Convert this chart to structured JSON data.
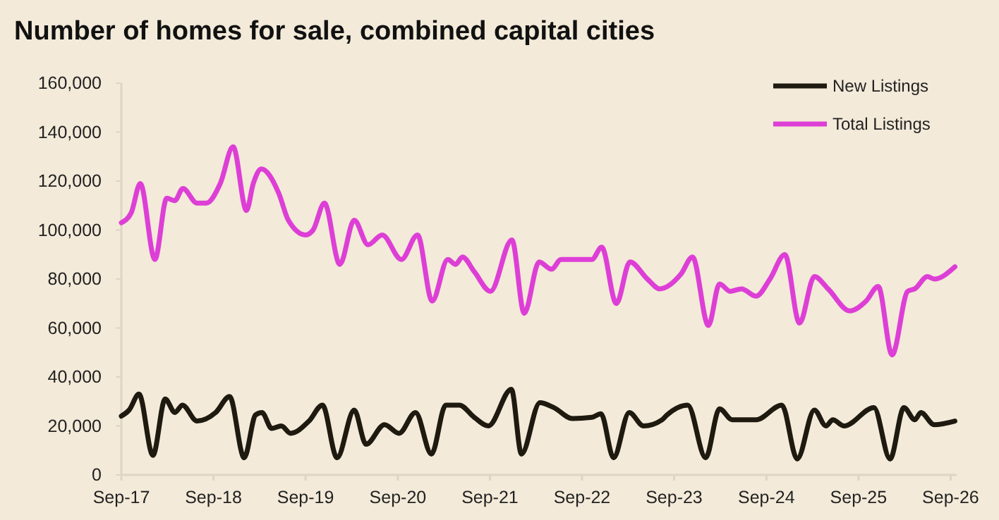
{
  "chart_data": {
    "type": "line",
    "title": "Number of homes for sale, combined capital cities",
    "legend": "top right",
    "line_style": "solid",
    "marker": "none",
    "xlim": [
      "2017-09-01",
      "2026-09-25"
    ],
    "xticks": [
      {
        "value": "2017-09-01",
        "label": "Sep-17"
      },
      {
        "value": "2018-09-01",
        "label": "Sep-18"
      },
      {
        "value": "2019-09-01",
        "label": "Sep-19"
      },
      {
        "value": "2020-09-01",
        "label": "Sep-20"
      },
      {
        "value": "2021-09-01",
        "label": "Sep-21"
      },
      {
        "value": "2022-09-01",
        "label": "Sep-22"
      },
      {
        "value": "2023-09-01",
        "label": "Sep-23"
      },
      {
        "value": "2024-09-01",
        "label": "Sep-24"
      },
      {
        "value": "2025-09-01",
        "label": "Sep-25"
      },
      {
        "value": "2026-09-01",
        "label": "Sep-26"
      }
    ],
    "ylim": [
      0,
      160000
    ],
    "yticks": [
      {
        "value": 0,
        "label": "0"
      },
      {
        "value": 20000,
        "label": "20,000"
      },
      {
        "value": 40000,
        "label": "40,000"
      },
      {
        "value": 60000,
        "label": "60,000"
      },
      {
        "value": 80000,
        "label": "80,000"
      },
      {
        "value": 100000,
        "label": "100,000"
      },
      {
        "value": 120000,
        "label": "120,000"
      },
      {
        "value": 140000,
        "label": "140,000"
      },
      {
        "value": 160000,
        "label": "160,000"
      }
    ],
    "series": [
      {
        "name": "New Listings",
        "color": "#1e1a10",
        "x": [
          "2017-09-01",
          "2017-10-02",
          "2017-11-10",
          "2018-01-04",
          "2018-02-22",
          "2018-04-01",
          "2018-05-01",
          "2018-06-28",
          "2018-09-10",
          "2018-11-04",
          "2019-01-01",
          "2019-02-15",
          "2019-03-12",
          "2019-04-20",
          "2019-05-28",
          "2019-07-04",
          "2019-09-15",
          "2019-11-07",
          "2020-01-04",
          "2020-03-12",
          "2020-04-28",
          "2020-07-10",
          "2020-09-06",
          "2020-11-10",
          "2021-01-12",
          "2021-03-10",
          "2021-05-03",
          "2021-07-01",
          "2021-08-26",
          "2021-11-25",
          "2022-01-04",
          "2022-03-18",
          "2022-05-12",
          "2022-07-25",
          "2022-10-10",
          "2022-11-15",
          "2023-01-04",
          "2023-03-07",
          "2023-05-03",
          "2023-07-15",
          "2023-08-04",
          "2023-10-25",
          "2024-01-04",
          "2024-02-28",
          "2024-04-18",
          "2024-07-22",
          "2024-11-01",
          "2025-01-01",
          "2025-03-10",
          "2025-04-25",
          "2025-05-22",
          "2025-07-06",
          "2025-11-01",
          "2026-01-04",
          "2026-02-28",
          "2026-04-12",
          "2026-05-06",
          "2026-06-28",
          "2026-09-18"
        ],
        "values": [
          24000,
          26500,
          33000,
          8000,
          31000,
          25500,
          28500,
          22000,
          25500,
          32000,
          7000,
          24500,
          25500,
          19000,
          20000,
          17000,
          22000,
          28500,
          7000,
          26500,
          12500,
          20500,
          17000,
          25500,
          8500,
          28500,
          28500,
          23500,
          20000,
          35000,
          8500,
          29500,
          27500,
          23000,
          23500,
          25000,
          7000,
          25500,
          20000,
          22500,
          24500,
          28500,
          7000,
          27000,
          22500,
          22500,
          28500,
          6500,
          26500,
          20000,
          22500,
          20000,
          27500,
          6500,
          27500,
          22500,
          25500,
          20500,
          22000
        ]
      },
      {
        "name": "Total Listings",
        "color": "#dd3fd6",
        "x": [
          "2017-09-01",
          "2017-10-10",
          "2017-11-15",
          "2018-01-12",
          "2018-02-28",
          "2018-04-01",
          "2018-05-03",
          "2018-06-28",
          "2018-08-04",
          "2018-09-28",
          "2018-11-18",
          "2019-01-10",
          "2019-02-06",
          "2019-03-10",
          "2019-05-18",
          "2019-06-25",
          "2019-09-01",
          "2019-10-01",
          "2019-11-15",
          "2020-01-15",
          "2020-03-12",
          "2020-05-06",
          "2020-07-01",
          "2020-09-15",
          "2020-11-18",
          "2021-01-15",
          "2021-03-18",
          "2021-04-18",
          "2021-05-15",
          "2021-07-01",
          "2021-09-03",
          "2021-11-27",
          "2022-01-15",
          "2022-03-15",
          "2022-05-03",
          "2022-06-10",
          "2022-10-10",
          "2022-11-18",
          "2023-01-15",
          "2023-03-10",
          "2023-05-18",
          "2023-07-06",
          "2023-09-28",
          "2023-11-13",
          "2024-01-15",
          "2024-02-28",
          "2024-04-10",
          "2024-05-25",
          "2024-07-22",
          "2024-09-15",
          "2024-11-13",
          "2025-01-10",
          "2025-03-10",
          "2025-05-03",
          "2025-07-28",
          "2025-10-01",
          "2025-11-18",
          "2026-01-12",
          "2026-03-15",
          "2026-04-12",
          "2026-06-01",
          "2026-06-28",
          "2026-09-18"
        ],
        "values": [
          103000,
          107000,
          119000,
          88000,
          113000,
          112000,
          117000,
          111000,
          111000,
          119000,
          134000,
          108000,
          119000,
          125000,
          115000,
          104000,
          98000,
          100000,
          111000,
          86000,
          104000,
          94000,
          98000,
          88000,
          98000,
          71000,
          88000,
          86000,
          89000,
          83000,
          75000,
          96000,
          66000,
          87000,
          84000,
          88000,
          88000,
          93000,
          70000,
          87000,
          80000,
          76000,
          82000,
          89000,
          61000,
          78000,
          75000,
          76000,
          73000,
          80000,
          90000,
          62000,
          81000,
          76000,
          67000,
          71000,
          77000,
          49000,
          75000,
          76000,
          81000,
          80000,
          85000
        ]
      }
    ]
  }
}
